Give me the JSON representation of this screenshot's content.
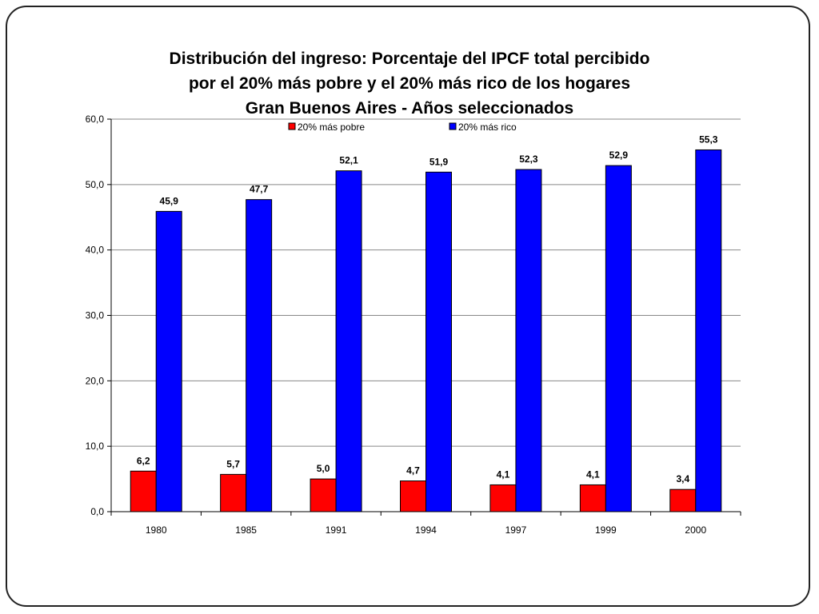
{
  "title_lines": [
    "Distribución del ingreso: Porcentaje del IPCF total percibido",
    "por el 20% más pobre y el 20% más rico de los hogares",
    "Gran Buenos Aires - Años seleccionados"
  ],
  "chart_data": {
    "type": "bar",
    "categories": [
      "1980",
      "1985",
      "1991",
      "1994",
      "1997",
      "1999",
      "2000"
    ],
    "series": [
      {
        "name": "20% más pobre",
        "color": "#ff0000",
        "values": [
          6.2,
          5.7,
          5.0,
          4.7,
          4.1,
          4.1,
          3.4
        ],
        "labels": [
          "6,2",
          "5,7",
          "5,0",
          "4,7",
          "4,1",
          "4,1",
          "3,4"
        ]
      },
      {
        "name": "20% más rico",
        "color": "#0000ff",
        "values": [
          45.9,
          47.7,
          52.1,
          51.9,
          52.3,
          52.9,
          55.3
        ],
        "labels": [
          "45,9",
          "47,7",
          "52,1",
          "51,9",
          "52,3",
          "52,9",
          "55,3"
        ]
      }
    ],
    "ylim": [
      0,
      60
    ],
    "yticks": [
      "0,0",
      "10,0",
      "20,0",
      "30,0",
      "40,0",
      "50,0",
      "60,0"
    ],
    "grid": true,
    "legend_position": "top"
  }
}
